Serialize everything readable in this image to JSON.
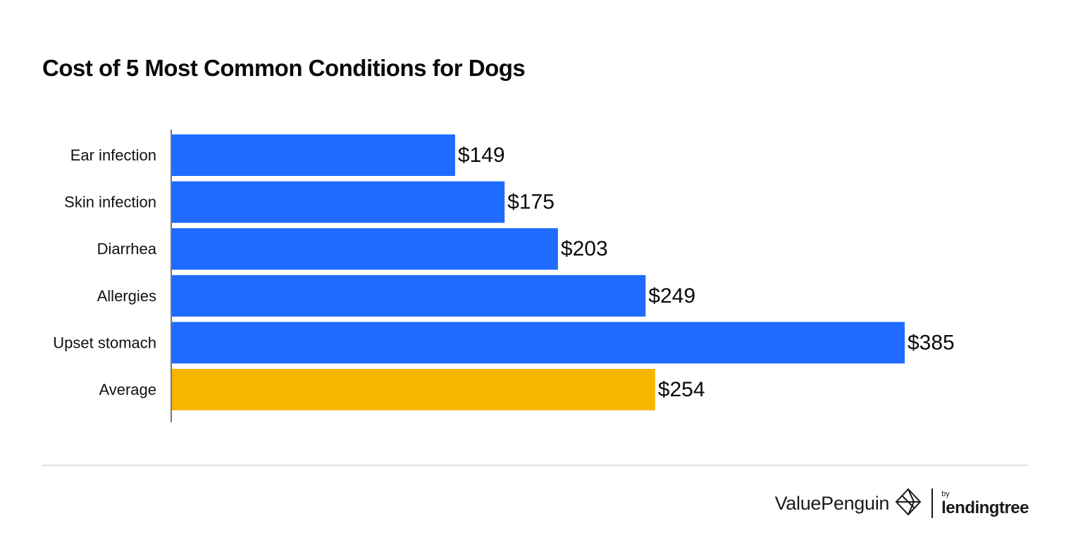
{
  "chart_data": {
    "type": "bar",
    "orientation": "horizontal",
    "title": "Cost of 5 Most Common Conditions for Dogs",
    "categories": [
      "Ear infection",
      "Skin infection",
      "Diarrhea",
      "Allergies",
      "Upset stomach",
      "Average"
    ],
    "values": [
      149,
      175,
      203,
      249,
      385,
      254
    ],
    "value_labels": [
      "$149",
      "$175",
      "$203",
      "$249",
      "$385",
      "$254"
    ],
    "colors": [
      "#1f6bff",
      "#1f6bff",
      "#1f6bff",
      "#1f6bff",
      "#1f6bff",
      "#f7b500"
    ],
    "xlabel": "",
    "ylabel": "",
    "xlim": [
      0,
      385
    ],
    "grid": false,
    "legend": "none"
  },
  "footer": {
    "brand": "ValuePenguin",
    "by": "by",
    "partner": "lendingtree",
    "brand_icon": "valuepenguin-logo-icon"
  }
}
